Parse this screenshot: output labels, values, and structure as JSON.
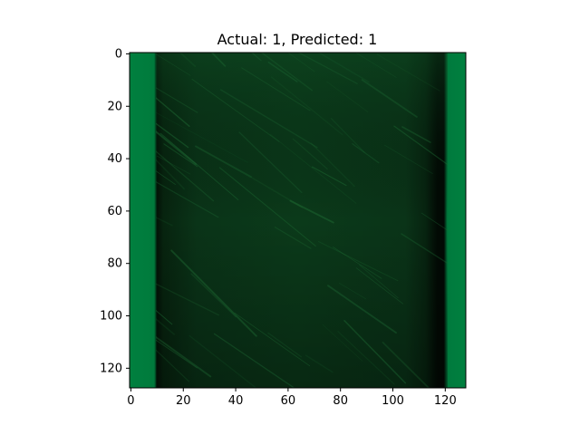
{
  "figure": {
    "title": "Actual: 1, Predicted: 1"
  },
  "image_axes": {
    "x_ticks": [
      "0",
      "20",
      "40",
      "60",
      "80",
      "100",
      "120"
    ],
    "y_ticks": [
      "0",
      "20",
      "40",
      "60",
      "80",
      "100",
      "120"
    ]
  },
  "image": {
    "colors": {
      "edge_green": "#008040",
      "dark_center": "#0a3518",
      "dark_border": "#020a04",
      "streak": "#1e6a34"
    }
  }
}
